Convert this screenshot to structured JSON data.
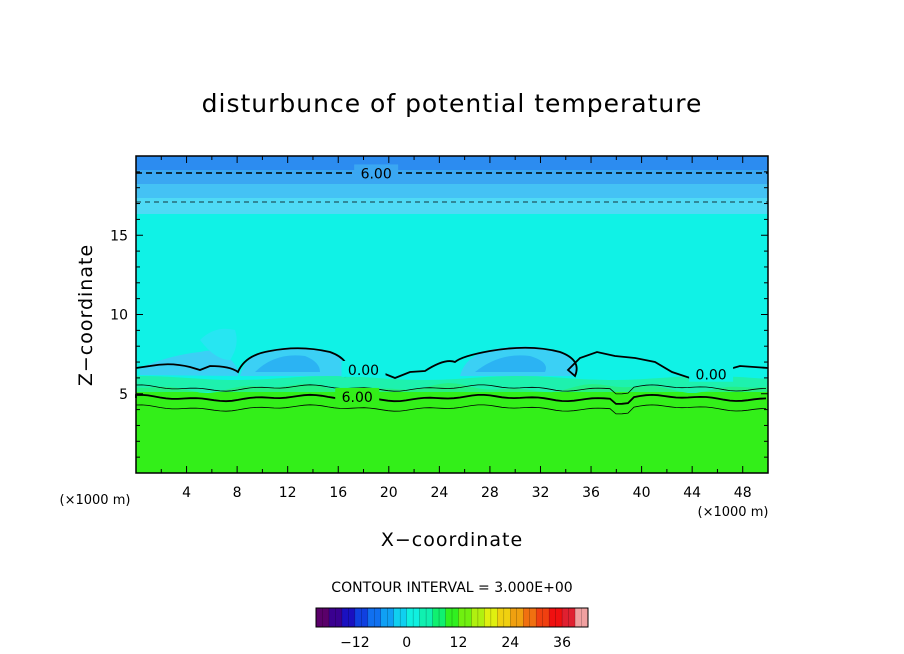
{
  "chart_data": {
    "type": "heatmap",
    "title": "disturbunce of potential temperature",
    "xlabel": "X−coordinate",
    "ylabel": "Z−coordinate",
    "x_unit": "(×1000 m)",
    "z_unit": "(×1000 m)",
    "xlim": [
      0,
      50
    ],
    "ylim": [
      0,
      20
    ],
    "x_ticks": [
      4,
      8,
      12,
      16,
      20,
      24,
      28,
      32,
      36,
      40,
      44,
      48
    ],
    "y_ticks": [
      5,
      10,
      15
    ],
    "contour_interval_label": "CONTOUR INTERVAL = 3.000E+00",
    "contour_labels": [
      {
        "text": "6.00",
        "x": 19.0,
        "z": 18.9
      },
      {
        "text": "0.00",
        "x": 18.0,
        "z": 6.5
      },
      {
        "text": "0.00",
        "x": 45.5,
        "z": 6.2
      },
      {
        "text": "6.00",
        "x": 17.5,
        "z": 4.8
      }
    ],
    "colorbar": {
      "min": -21,
      "max": 42,
      "ticks": [
        -12,
        0,
        12,
        24,
        36
      ]
    },
    "fields": {
      "top_layer_value": -6,
      "mid_layer_value": -1,
      "bottom_layer_value": 12
    },
    "colors": {
      "top_band_1": "#2c8cf0",
      "top_band_2": "#3aa7f2",
      "top_band_3": "#44c2f4",
      "top_band_4": "#4fdaf5",
      "cyan_field": "#10f2e6",
      "green_field": "#33ef19",
      "blue_blob": "#3bd0f5",
      "blue_blob_dark": "#2bb3f3"
    }
  }
}
